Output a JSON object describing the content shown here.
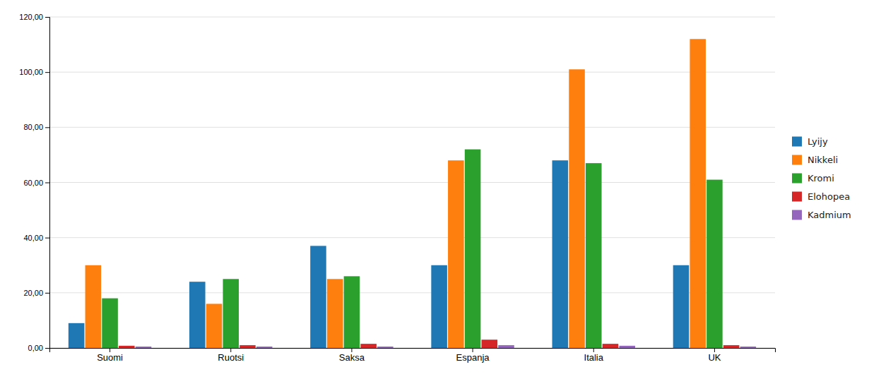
{
  "chart_data": {
    "type": "bar",
    "categories": [
      "Suomi",
      "Ruotsi",
      "Saksa",
      "Espanja",
      "Italia",
      "UK"
    ],
    "series": [
      {
        "name": "Lyijy",
        "values": [
          9,
          24,
          37,
          30,
          68,
          30
        ]
      },
      {
        "name": "Nikkeli",
        "values": [
          30,
          16,
          25,
          68,
          101,
          112
        ]
      },
      {
        "name": "Kromi",
        "values": [
          18,
          25,
          26,
          72,
          67,
          61
        ]
      },
      {
        "name": "Elohopea",
        "values": [
          0.8,
          1.0,
          1.5,
          3.0,
          1.5,
          1.0
        ]
      },
      {
        "name": "Kadmium",
        "values": [
          0.5,
          0.5,
          0.5,
          1.0,
          0.8,
          0.5
        ]
      }
    ],
    "ylim": [
      0,
      120
    ],
    "yticks": [
      {
        "value": 0,
        "label": "0,00"
      },
      {
        "value": 20,
        "label": "20,00"
      },
      {
        "value": 40,
        "label": "40,00"
      },
      {
        "value": 60,
        "label": "60,00"
      },
      {
        "value": 80,
        "label": "80,00"
      },
      {
        "value": 100,
        "label": "100,00"
      },
      {
        "value": 120,
        "label": "120,00"
      }
    ],
    "grid": true,
    "legend": "right"
  }
}
